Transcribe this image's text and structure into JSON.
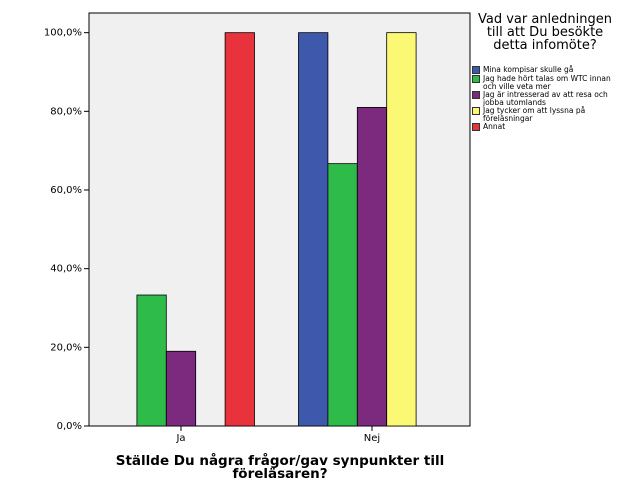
{
  "chart_data": {
    "type": "bar",
    "x_label": "Ställde Du några frågor/gav synpunkter till föreläsaren?",
    "legend_title": "Vad var anledningen till att Du besökte detta infomöte?",
    "categories": [
      "Ja",
      "Nej"
    ],
    "series": [
      {
        "name": "Mina kompisar skulle gå",
        "color": "#3e58ac",
        "values": [
          null,
          100
        ]
      },
      {
        "name": "Jag hade hört talas om WTC innan och ville veta mer",
        "color": "#2fbb4a",
        "values": [
          33.3,
          66.7
        ]
      },
      {
        "name": "Jag är intresserad av att resa och jobba utomlands",
        "color": "#7b2a7e",
        "values": [
          19.0,
          81.0
        ]
      },
      {
        "name": "Jag tycker om att lyssna på föreläsningar",
        "color": "#fbf873",
        "values": [
          null,
          100
        ]
      },
      {
        "name": "Annat",
        "color": "#e8323c",
        "values": [
          100,
          null
        ]
      }
    ],
    "ylim": [
      0,
      105
    ],
    "yticks": [
      {
        "value": 0,
        "label": "0,0%"
      },
      {
        "value": 20,
        "label": "20,0%"
      },
      {
        "value": 40,
        "label": "40,0%"
      },
      {
        "value": 60,
        "label": "60,0%"
      },
      {
        "value": 80,
        "label": "80,0%"
      },
      {
        "value": 100,
        "label": "100,0%"
      }
    ],
    "background": "#f0f0f0"
  }
}
